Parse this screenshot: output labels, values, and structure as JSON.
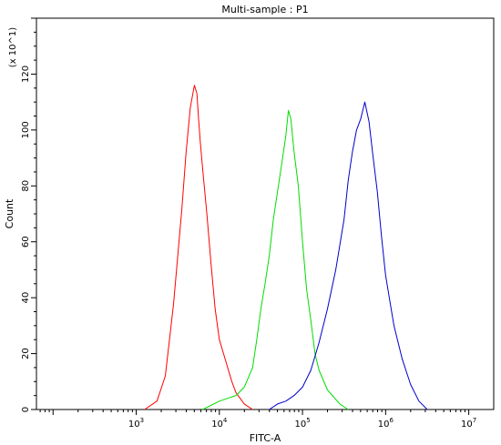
{
  "chart_data": {
    "type": "line",
    "title": "Multi-sample : P1",
    "xlabel": "FITC-A",
    "ylabel": "Count",
    "y_multiplier_label": "(x 10^1)",
    "x_scale": "log",
    "xlim_log10": [
      1.8,
      7.3
    ],
    "ylim": [
      0,
      140
    ],
    "x_tick_labels": [
      {
        "base": "10",
        "exp": "3",
        "pos": 3
      },
      {
        "base": "10",
        "exp": "4",
        "pos": 4
      },
      {
        "base": "10",
        "exp": "5",
        "pos": 5
      },
      {
        "base": "10",
        "exp": "6",
        "pos": 6
      },
      {
        "base": "10",
        "exp": "7",
        "pos": 7
      }
    ],
    "y_ticks": [
      0,
      20,
      40,
      60,
      80,
      100,
      120
    ],
    "grid": false,
    "legend": "none",
    "series": [
      {
        "color": "#ff0000",
        "x_log10": [
          3.1,
          3.25,
          3.35,
          3.45,
          3.55,
          3.6,
          3.65,
          3.7,
          3.73,
          3.75,
          3.77,
          3.8,
          3.85,
          3.9,
          3.95,
          4.0,
          4.05,
          4.1,
          4.15,
          4.2,
          4.25,
          4.3,
          4.35,
          4.4
        ],
        "values": [
          0,
          3,
          12,
          38,
          72,
          92,
          108,
          116,
          113,
          104,
          96,
          86,
          70,
          52,
          36,
          25,
          20,
          15,
          10,
          6,
          4,
          2,
          1,
          0
        ]
      },
      {
        "color": "#00dd00",
        "x_log10": [
          3.8,
          4.0,
          4.2,
          4.3,
          4.4,
          4.45,
          4.5,
          4.55,
          4.6,
          4.65,
          4.7,
          4.75,
          4.8,
          4.83,
          4.86,
          4.9,
          4.95,
          5.0,
          5.05,
          5.1,
          5.15,
          5.2,
          5.3,
          5.45,
          5.55
        ],
        "values": [
          0,
          3,
          5,
          8,
          15,
          25,
          36,
          45,
          55,
          68,
          78,
          88,
          98,
          107,
          104,
          92,
          80,
          60,
          43,
          32,
          20,
          14,
          7,
          2,
          0
        ]
      },
      {
        "color": "#0000cc",
        "x_log10": [
          4.6,
          4.7,
          4.8,
          4.9,
          5.0,
          5.1,
          5.2,
          5.3,
          5.4,
          5.5,
          5.55,
          5.6,
          5.65,
          5.7,
          5.75,
          5.8,
          5.85,
          5.9,
          5.95,
          6.0,
          6.1,
          6.2,
          6.3,
          6.4,
          6.5
        ],
        "values": [
          0,
          2,
          3,
          5,
          8,
          14,
          24,
          36,
          50,
          68,
          82,
          92,
          100,
          104,
          110,
          103,
          90,
          78,
          62,
          48,
          30,
          18,
          9,
          3,
          0
        ]
      }
    ]
  }
}
